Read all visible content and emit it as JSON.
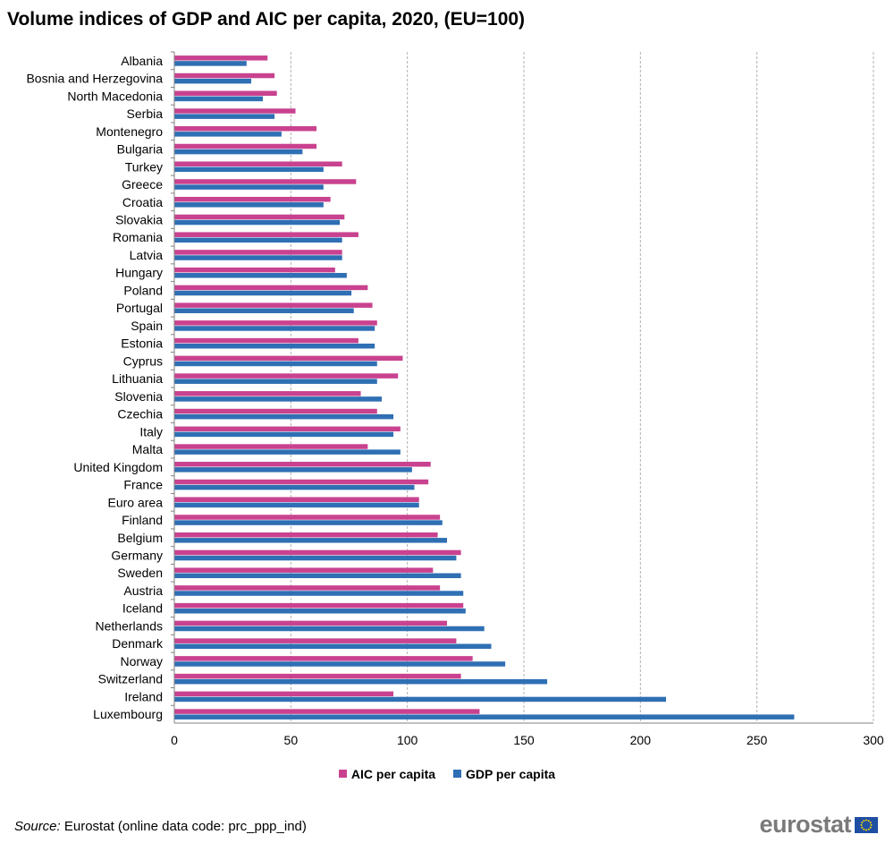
{
  "title": "Volume indices of GDP and AIC per capita, 2020, (EU=100)",
  "source": {
    "label": "Source:",
    "text": " Eurostat (online data code: prc_ppp_ind)"
  },
  "logo": {
    "text": "eurostat"
  },
  "colors": {
    "aic": "#c9428f",
    "gdp": "#2f6fb3",
    "grid": "#b0b0b0",
    "axis": "#808080"
  },
  "chart_data": {
    "type": "bar",
    "orientation": "horizontal",
    "categories": [
      "Albania",
      "Bosnia and Herzegovina",
      "North Macedonia",
      "Serbia",
      "Montenegro",
      "Bulgaria",
      "Turkey",
      "Greece",
      "Croatia",
      "Slovakia",
      "Romania",
      "Latvia",
      "Hungary",
      "Poland",
      "Portugal",
      "Spain",
      "Estonia",
      "Cyprus",
      "Lithuania",
      "Slovenia",
      "Czechia",
      "Italy",
      "Malta",
      "United Kingdom",
      "France",
      "Euro area",
      "Finland",
      "Belgium",
      "Germany",
      "Sweden",
      "Austria",
      "Iceland",
      "Netherlands",
      "Denmark",
      "Norway",
      "Switzerland",
      "Ireland",
      "Luxembourg"
    ],
    "series": [
      {
        "name": "AIC per capita",
        "color": "#c9428f",
        "values": [
          40,
          43,
          44,
          52,
          61,
          61,
          72,
          78,
          67,
          73,
          79,
          72,
          69,
          83,
          85,
          87,
          79,
          98,
          96,
          80,
          87,
          97,
          83,
          110,
          109,
          105,
          114,
          113,
          123,
          111,
          114,
          124,
          117,
          121,
          128,
          123,
          94,
          131
        ]
      },
      {
        "name": "GDP per capita",
        "color": "#2f6fb3",
        "values": [
          31,
          33,
          38,
          43,
          46,
          55,
          64,
          64,
          64,
          71,
          72,
          72,
          74,
          76,
          77,
          86,
          86,
          87,
          87,
          89,
          94,
          94,
          97,
          102,
          103,
          105,
          115,
          117,
          121,
          123,
          124,
          125,
          133,
          136,
          142,
          160,
          211,
          266
        ]
      }
    ],
    "xlim": [
      0,
      300
    ],
    "xticks": [
      0,
      50,
      100,
      150,
      200,
      250,
      300
    ],
    "grid": "vertical dashed",
    "legend": "bottom"
  }
}
